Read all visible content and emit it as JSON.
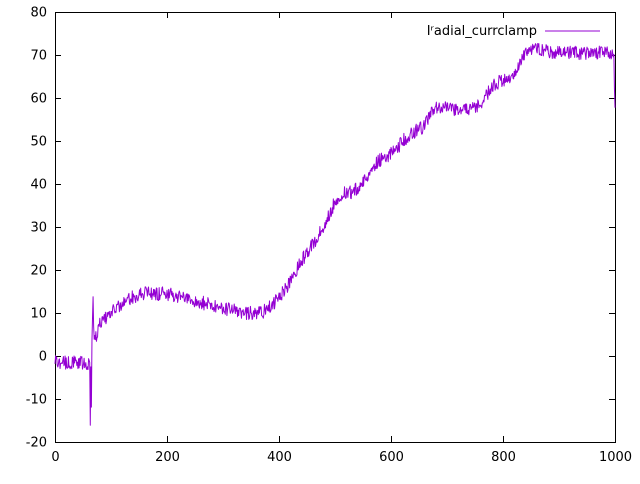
{
  "chart_data": {
    "type": "line",
    "title": "",
    "xlabel": "",
    "ylabel": "",
    "xlim": [
      0,
      1000
    ],
    "ylim": [
      -20,
      80
    ],
    "xticks": [
      0,
      200,
      400,
      600,
      800,
      1000
    ],
    "yticks": [
      -20,
      -10,
      0,
      10,
      20,
      30,
      40,
      50,
      60,
      70,
      80
    ],
    "grid": false,
    "background_color": "#ffffff",
    "axis_color": "#000000",
    "legend_position": "top-right-inside",
    "series": [
      {
        "name": "Iʳadial_currclamp",
        "color": "#9400d3",
        "noise_amplitude": 1.6,
        "trend_points": [
          [
            0,
            -1.5
          ],
          [
            55,
            -1.5
          ],
          [
            60,
            -2
          ],
          [
            62,
            -2
          ],
          [
            63,
            -17
          ],
          [
            64,
            -3
          ],
          [
            65,
            -12
          ],
          [
            66,
            2
          ],
          [
            68,
            13
          ],
          [
            70,
            4
          ],
          [
            74,
            5
          ],
          [
            78,
            7
          ],
          [
            85,
            8.5
          ],
          [
            95,
            9.5
          ],
          [
            105,
            10.5
          ],
          [
            115,
            11.5
          ],
          [
            125,
            12.5
          ],
          [
            135,
            13.5
          ],
          [
            145,
            14
          ],
          [
            160,
            14.5
          ],
          [
            180,
            14.5
          ],
          [
            200,
            14.5
          ],
          [
            215,
            14
          ],
          [
            230,
            13.5
          ],
          [
            245,
            13
          ],
          [
            260,
            12.5
          ],
          [
            275,
            12
          ],
          [
            290,
            11.5
          ],
          [
            305,
            11
          ],
          [
            320,
            10.5
          ],
          [
            335,
            10
          ],
          [
            350,
            10
          ],
          [
            365,
            10
          ],
          [
            375,
            10.5
          ],
          [
            385,
            11.5
          ],
          [
            395,
            13
          ],
          [
            405,
            14.5
          ],
          [
            415,
            16
          ],
          [
            425,
            18.5
          ],
          [
            435,
            21
          ],
          [
            445,
            23
          ],
          [
            455,
            25
          ],
          [
            465,
            27
          ],
          [
            475,
            29
          ],
          [
            485,
            31.5
          ],
          [
            495,
            34.5
          ],
          [
            505,
            37
          ],
          [
            515,
            38
          ],
          [
            530,
            38
          ],
          [
            545,
            39.5
          ],
          [
            555,
            41.5
          ],
          [
            565,
            43.5
          ],
          [
            575,
            45
          ],
          [
            585,
            46
          ],
          [
            595,
            46.5
          ],
          [
            605,
            47.5
          ],
          [
            615,
            49
          ],
          [
            625,
            50.5
          ],
          [
            635,
            51.5
          ],
          [
            645,
            52.5
          ],
          [
            655,
            53
          ],
          [
            665,
            55
          ],
          [
            675,
            57
          ],
          [
            685,
            58
          ],
          [
            695,
            58
          ],
          [
            705,
            57.5
          ],
          [
            715,
            57
          ],
          [
            725,
            57
          ],
          [
            735,
            57.5
          ],
          [
            745,
            58
          ],
          [
            755,
            58
          ],
          [
            765,
            59.5
          ],
          [
            775,
            61.5
          ],
          [
            785,
            63
          ],
          [
            795,
            64
          ],
          [
            805,
            64.5
          ],
          [
            815,
            65
          ],
          [
            825,
            67
          ],
          [
            835,
            69.5
          ],
          [
            845,
            71
          ],
          [
            855,
            71.5
          ],
          [
            870,
            71
          ],
          [
            890,
            70.5
          ],
          [
            910,
            70.5
          ],
          [
            930,
            70.5
          ],
          [
            950,
            70.5
          ],
          [
            970,
            70.5
          ],
          [
            990,
            70.5
          ],
          [
            998,
            70
          ],
          [
            1000,
            57
          ]
        ]
      }
    ]
  }
}
